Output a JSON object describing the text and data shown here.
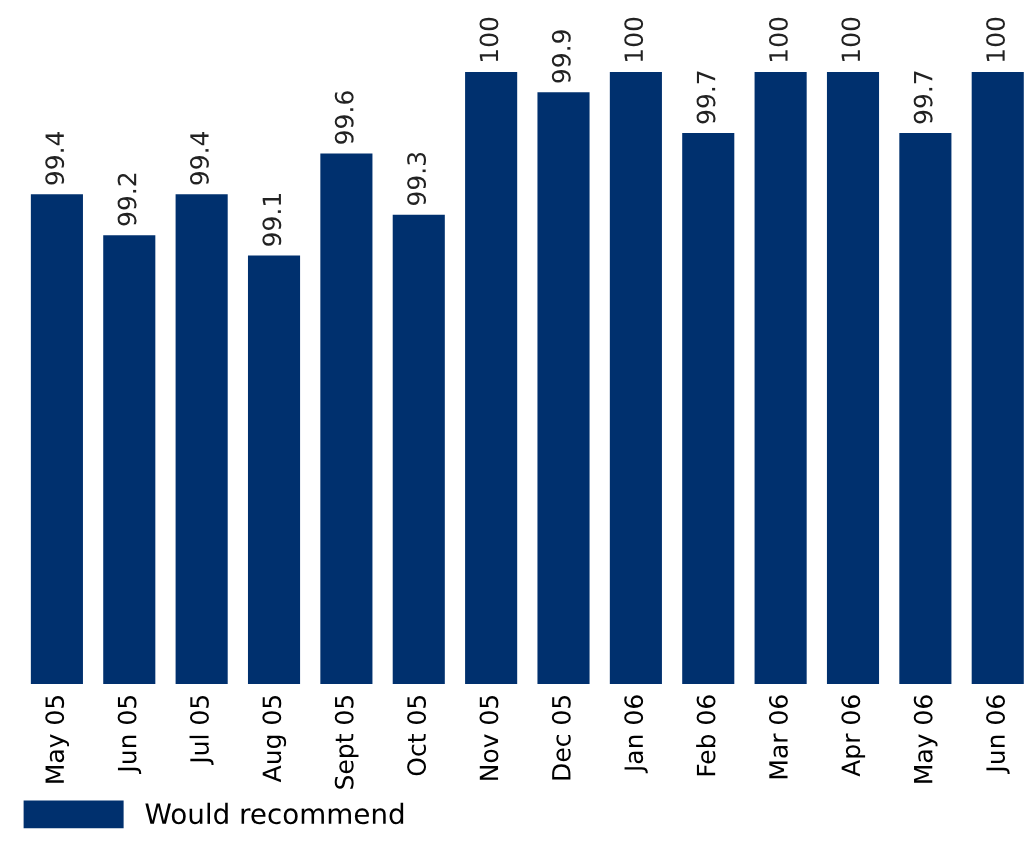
{
  "chart_data": {
    "type": "bar",
    "categories": [
      "May 05",
      "Jun 05",
      "Jul 05",
      "Aug 05",
      "Sept 05",
      "Oct 05",
      "Nov 05",
      "Dec 05",
      "Jan 06",
      "Feb 06",
      "Mar 06",
      "Apr 06",
      "May 06",
      "Jun 06"
    ],
    "series": [
      {
        "name": "Would recommend",
        "color": "#00306e",
        "values": [
          99.4,
          99.2,
          99.4,
          99.1,
          99.6,
          99.3,
          100,
          99.9,
          100,
          99.7,
          100,
          100,
          99.7,
          100
        ]
      }
    ],
    "ylim": [
      97,
      100
    ],
    "tick_labels": "x",
    "data_labels": true,
    "legend": "bottom left",
    "grid": false
  }
}
